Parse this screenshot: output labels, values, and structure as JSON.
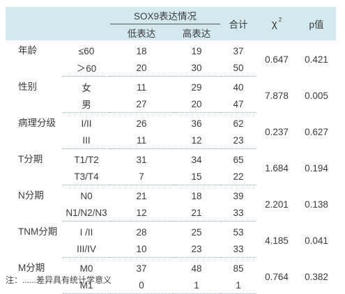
{
  "headers": {
    "group": "SOX9表达情况",
    "low": "低表达",
    "high": "高表达",
    "total": "合计",
    "chi": "χ",
    "chi_sup": "2",
    "p": "p值"
  },
  "groups": [
    {
      "label": "年龄",
      "chi2": "0.647",
      "p": "0.421",
      "rows": [
        {
          "sub": "≤60",
          "low": "18",
          "high": "19",
          "total": "37"
        },
        {
          "sub": "＞60",
          "low": "20",
          "high": "30",
          "total": "50"
        }
      ]
    },
    {
      "label": "性别",
      "chi2": "7.878",
      "p": "0.005",
      "rows": [
        {
          "sub": "女",
          "low": "11",
          "high": "29",
          "total": "40"
        },
        {
          "sub": "男",
          "low": "27",
          "high": "20",
          "total": "47"
        }
      ]
    },
    {
      "label": "病理分级",
      "chi2": "0.237",
      "p": "0.627",
      "rows": [
        {
          "sub": "I/II",
          "low": "26",
          "high": "36",
          "total": "62"
        },
        {
          "sub": "III",
          "low": "11",
          "high": "12",
          "total": "23"
        }
      ]
    },
    {
      "label": "T分期",
      "chi2": "1.684",
      "p": "0.194",
      "rows": [
        {
          "sub": "T1/T2",
          "low": "31",
          "high": "34",
          "total": "65"
        },
        {
          "sub": "T3/T4",
          "low": "7",
          "high": "15",
          "total": "22"
        }
      ]
    },
    {
      "label": "N分期",
      "chi2": "2.201",
      "p": "0.138",
      "rows": [
        {
          "sub": "N0",
          "low": "21",
          "high": "18",
          "total": "39"
        },
        {
          "sub": "N1/N2/N3",
          "low": "12",
          "high": "21",
          "total": "33"
        }
      ]
    },
    {
      "label": "TNM分期",
      "chi2": "4.185",
      "p": "0.041",
      "rows": [
        {
          "sub": "I /II",
          "low": "28",
          "high": "25",
          "total": "53"
        },
        {
          "sub": "III/IV",
          "low": "10",
          "high": "23",
          "total": "33"
        }
      ]
    },
    {
      "label": "M分期",
      "chi2": "0.764",
      "p": "0.382",
      "rows": [
        {
          "sub": "M0",
          "low": "37",
          "high": "48",
          "total": "85"
        },
        {
          "sub": "M1",
          "low": "0",
          "high": "1",
          "total": "1"
        }
      ]
    }
  ],
  "footnote": "注：......差异具有统计学意义"
}
